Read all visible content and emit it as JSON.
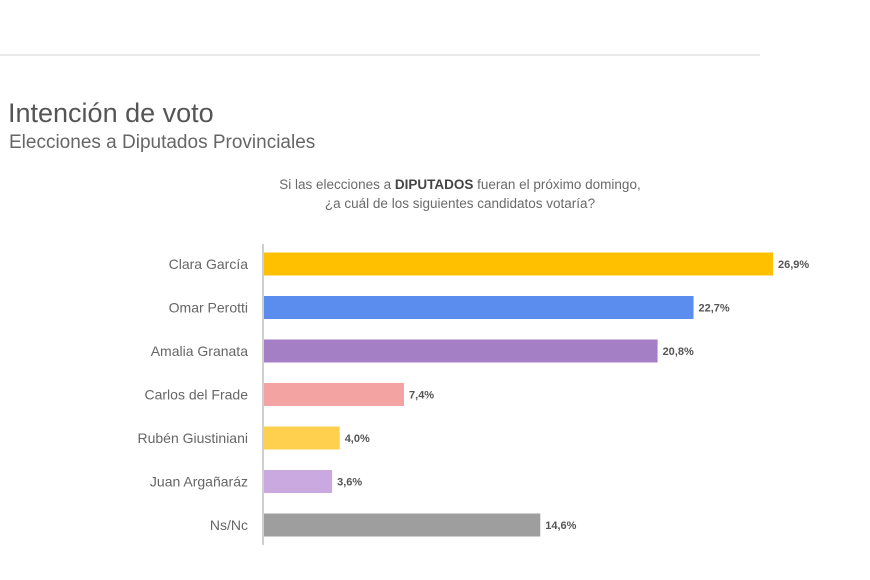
{
  "header": {
    "title": "Intención de voto",
    "subtitle": "Elecciones a Diputados Provinciales",
    "question_part1": "Si las elecciones a ",
    "question_bold": "DIPUTADOS",
    "question_part2": " fueran el próximo domingo,",
    "question_line2": "¿a cuál de los siguientes candidatos votaría?"
  },
  "chart_data": {
    "type": "bar",
    "orientation": "horizontal",
    "categories": [
      "Clara García",
      "Omar Perotti",
      "Amalia Granata",
      "Carlos del Frade",
      "Rubén Giustiniani",
      "Juan Argañaráz",
      "Ns/Nc"
    ],
    "values": [
      26.9,
      22.7,
      20.8,
      7.4,
      4.0,
      3.6,
      14.6
    ],
    "value_labels": [
      "26,9%",
      "22,7%",
      "20,8%",
      "7,4%",
      "4,0%",
      "3,6%",
      "14,6%"
    ],
    "colors": [
      "#FFC000",
      "#5B8DEF",
      "#A57FC6",
      "#F4A3A3",
      "#FFD04D",
      "#C9A9E0",
      "#9E9E9E"
    ],
    "xlim": [
      0,
      26.9
    ],
    "grid": false,
    "legend": "none"
  }
}
